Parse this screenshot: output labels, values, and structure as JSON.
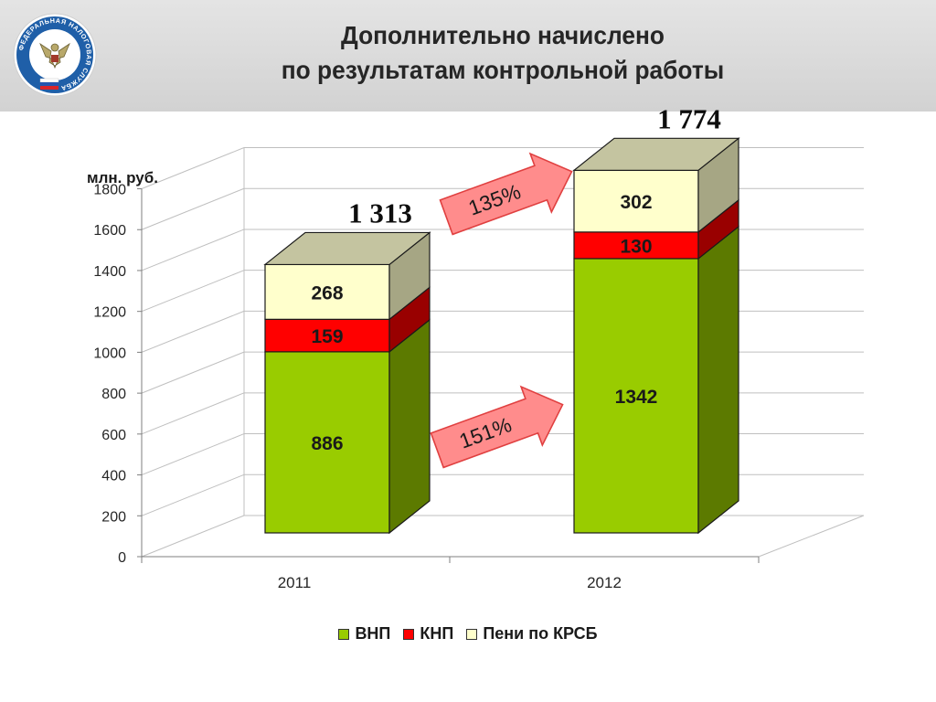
{
  "header": {
    "title_line1": "Дополнительно начислено",
    "title_line2": "по результатам контрольной работы",
    "logo_text": "ФЕДЕРАЛЬНАЯ НАЛОГОВАЯ СЛУЖБА"
  },
  "colors": {
    "vnp": "#99cc00",
    "knp": "#ff0000",
    "peni": "#ffffcc",
    "total_cap": "#c4c4a0",
    "arrow": "#ff8c8c"
  },
  "chart_data": {
    "type": "bar",
    "stacked": true,
    "three_d": true,
    "ylabel": "млн. руб.",
    "ylim": [
      0,
      1800
    ],
    "yticks": [
      0,
      200,
      400,
      600,
      800,
      1000,
      1200,
      1400,
      1600,
      1800
    ],
    "categories": [
      "2011",
      "2012"
    ],
    "series": [
      {
        "name": "ВНП",
        "values": [
          886,
          1342
        ]
      },
      {
        "name": "КНП",
        "values": [
          159,
          130
        ]
      },
      {
        "name": "Пени по КРСБ",
        "values": [
          268,
          302
        ]
      }
    ],
    "totals": [
      "1 313",
      "1 774"
    ],
    "growth_annotations": [
      {
        "label": "135%",
        "series": "total"
      },
      {
        "label": "151%",
        "series": "ВНП"
      }
    ],
    "grid": true,
    "legend_position": "bottom"
  }
}
